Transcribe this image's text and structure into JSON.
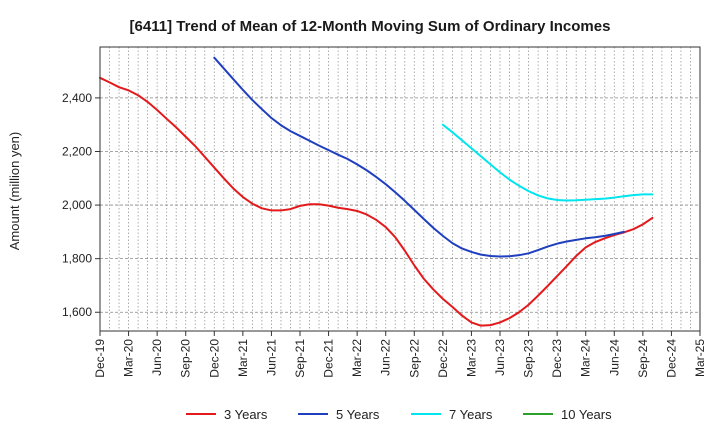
{
  "chart_data": {
    "type": "line",
    "title": "[6411]  Trend of Mean of 12-Month Moving Sum of Ordinary Incomes",
    "xlabel": "",
    "ylabel": "Amount (million yen)",
    "ylim": [
      1530,
      2590
    ],
    "yticks": [
      1600,
      1800,
      2000,
      2200,
      2400
    ],
    "ytick_labels": [
      "1,600",
      "1,800",
      "2,000",
      "2,200",
      "2,400"
    ],
    "x_categories": [
      "Dec-19",
      "Mar-20",
      "Jun-20",
      "Sep-20",
      "Dec-20",
      "Mar-21",
      "Jun-21",
      "Sep-21",
      "Dec-21",
      "Mar-22",
      "Jun-22",
      "Sep-22",
      "Dec-22",
      "Mar-23",
      "Jun-23",
      "Sep-23",
      "Dec-23",
      "Mar-24",
      "Jun-24",
      "Sep-24",
      "Dec-24",
      "Mar-25"
    ],
    "grid": true,
    "legend_position": "bottom",
    "series": [
      {
        "name": "3 Years",
        "color": "#e31a1c",
        "start_index": 0,
        "values": [
          2475,
          2458,
          2440,
          2428,
          2410,
          2385,
          2355,
          2322,
          2290,
          2255,
          2220,
          2180,
          2140,
          2100,
          2062,
          2030,
          2005,
          1988,
          1980,
          1980,
          1985,
          1997,
          2003,
          2003,
          1998,
          1990,
          1985,
          1978,
          1965,
          1945,
          1918,
          1880,
          1830,
          1775,
          1725,
          1685,
          1650,
          1620,
          1588,
          1562,
          1550,
          1552,
          1562,
          1578,
          1600,
          1628,
          1662,
          1698,
          1735,
          1772,
          1810,
          1842,
          1862,
          1876,
          1888,
          1898,
          1910,
          1928,
          1952
        ]
      },
      {
        "name": "5 Years",
        "color": "#1f3fbf",
        "start_index": 12,
        "values": [
          2550,
          2510,
          2470,
          2430,
          2392,
          2358,
          2325,
          2298,
          2276,
          2258,
          2240,
          2222,
          2205,
          2188,
          2172,
          2152,
          2130,
          2105,
          2078,
          2048,
          2016,
          1982,
          1948,
          1915,
          1885,
          1858,
          1838,
          1825,
          1815,
          1810,
          1808,
          1809,
          1813,
          1820,
          1832,
          1845,
          1856,
          1864,
          1870,
          1876,
          1880,
          1885,
          1892,
          1900
        ]
      },
      {
        "name": "7 Years",
        "color": "#00e5ee",
        "start_index": 36,
        "values": [
          2300,
          2272,
          2242,
          2212,
          2182,
          2152,
          2122,
          2095,
          2072,
          2052,
          2036,
          2025,
          2019,
          2017,
          2018,
          2020,
          2022,
          2024,
          2028,
          2033,
          2037,
          2040,
          2040
        ]
      },
      {
        "name": "10 Years",
        "color": "#2ca02c",
        "start_index": 0,
        "values": []
      }
    ]
  }
}
